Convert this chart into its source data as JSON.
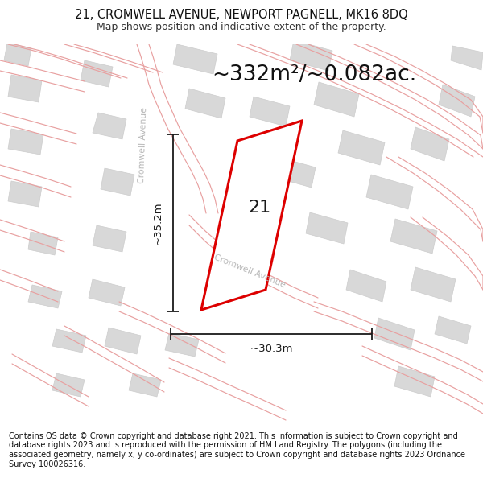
{
  "title_line1": "21, CROMWELL AVENUE, NEWPORT PAGNELL, MK16 8DQ",
  "title_line2": "Map shows position and indicative extent of the property.",
  "footer": "Contains OS data © Crown copyright and database right 2021. This information is subject to Crown copyright and database rights 2023 and is reproduced with the permission of HM Land Registry. The polygons (including the associated geometry, namely x, y co-ordinates) are subject to Crown copyright and database rights 2023 Ordnance Survey 100026316.",
  "area_text": "~332m²/~0.082ac.",
  "label_21": "21",
  "dim_vertical": "~35.2m",
  "dim_horizontal": "~30.3m",
  "bg_color": "#ffffff",
  "map_bg": "#f7f7f7",
  "plot_stroke": "#dd0000",
  "plot_fill": "#ffffff",
  "dim_color": "#1a1a1a",
  "gray_bld": "#d8d8d8",
  "gray_bld_edge": "#cccccc",
  "road_color": "#e8a0a0",
  "road_label_color": "#b8b8b8",
  "title_fontsize": 10.5,
  "subtitle_fontsize": 9.0,
  "area_fontsize": 19,
  "label_fontsize": 16,
  "footer_fontsize": 7.0
}
